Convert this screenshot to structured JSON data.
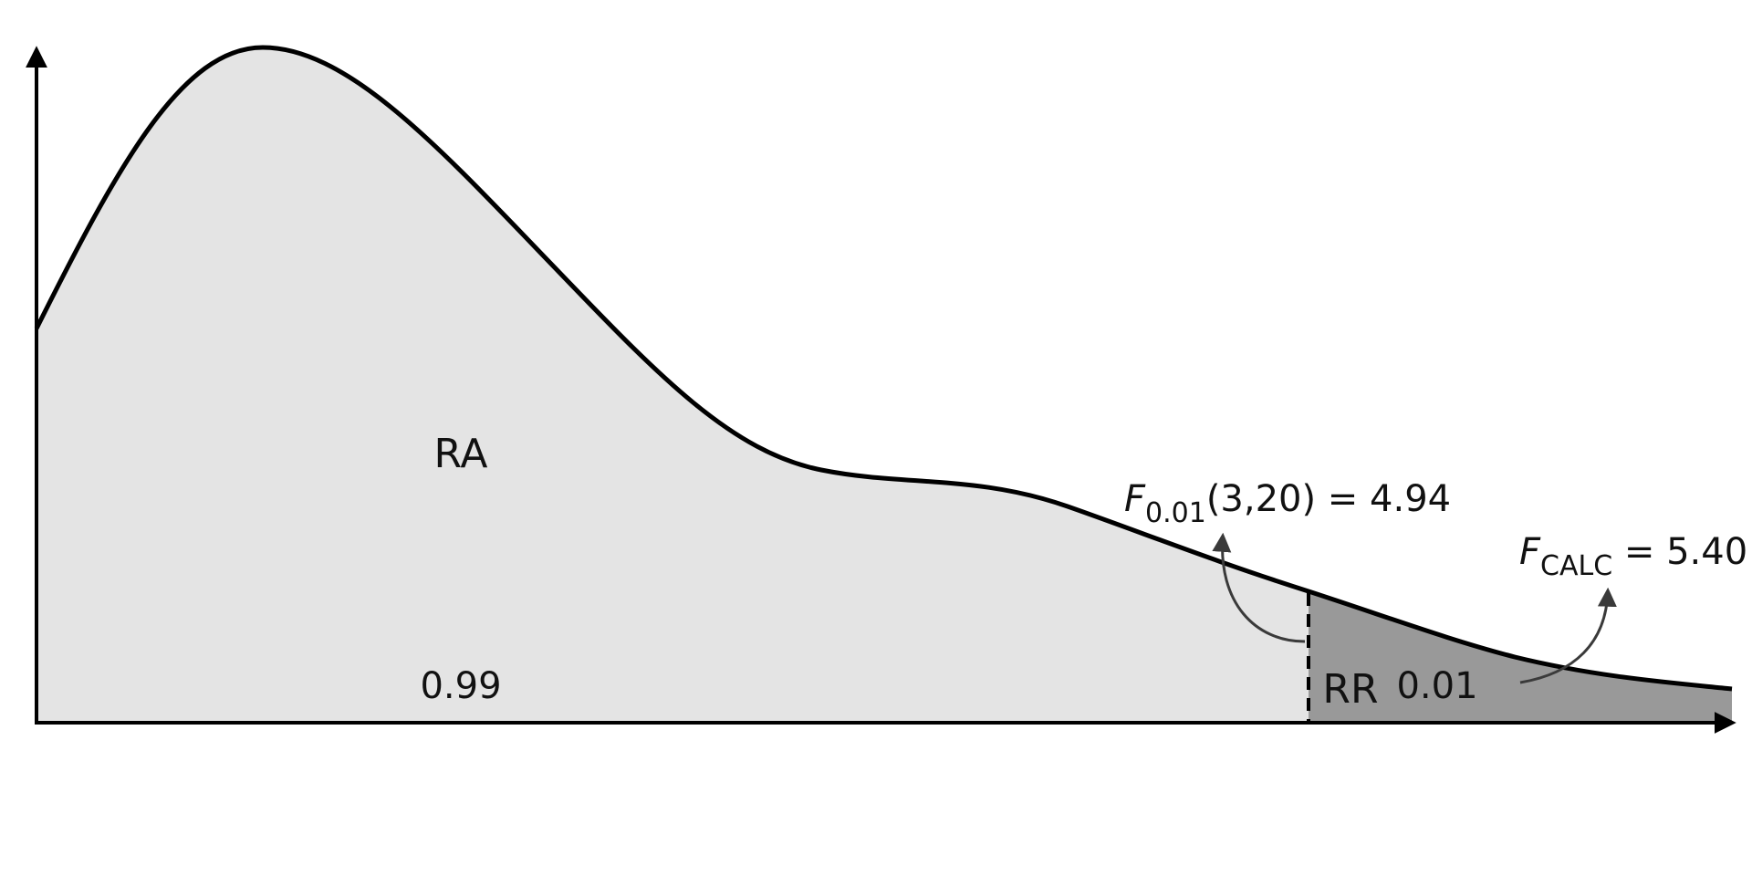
{
  "colors": {
    "acceptance_fill": "#e4e4e4",
    "rejection_fill": "#999999",
    "curve": "#000000",
    "annotation_arrow": "#3a3a3a"
  },
  "regions": {
    "acceptance": {
      "label": "RA",
      "area": "0.99"
    },
    "rejection": {
      "label": "RR",
      "area": "0.01"
    }
  },
  "critical_value": {
    "symbol": "F",
    "subscript": "0.01",
    "rest": "(3,20) = 4.94"
  },
  "calculated_value": {
    "symbol": "F",
    "subscript": "CALC",
    "rest": " = 5.40"
  }
}
